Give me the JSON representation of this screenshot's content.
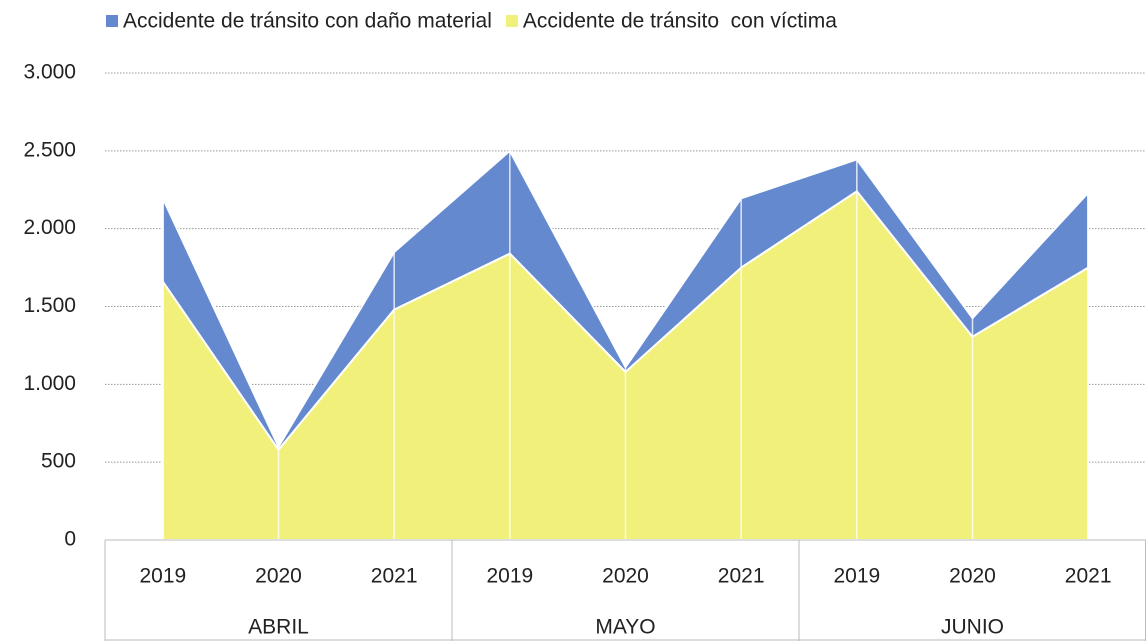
{
  "chart_data": {
    "type": "stacked_area",
    "categories": [
      "2019",
      "2020",
      "2021",
      "2019",
      "2020",
      "2021",
      "2019",
      "2020",
      "2021"
    ],
    "category_groups": [
      "ABRIL",
      "MAYO",
      "JUNIO"
    ],
    "series": [
      {
        "name": "Accidente de tránsito con daño material",
        "color": "#6489cf",
        "values": [
          535,
          20,
          370,
          660,
          30,
          445,
          205,
          120,
          480
        ]
      },
      {
        "name": "Accidente de tránsito  con víctima",
        "color": "#f0f07a",
        "values": [
          1660,
          580,
          1480,
          1840,
          1080,
          1750,
          2240,
          1306,
          1750
        ]
      }
    ],
    "ylim": [
      0,
      3000
    ],
    "yticks": [
      0,
      500,
      {
        "value": 1000,
        "label": "1.000"
      },
      {
        "value": 1500,
        "label": "1.500"
      },
      {
        "value": 2000,
        "label": "2.000"
      },
      {
        "value": 2500,
        "label": "2.500"
      },
      {
        "value": 3000,
        "label": "3.000"
      }
    ],
    "grid": true,
    "legend": "top"
  }
}
